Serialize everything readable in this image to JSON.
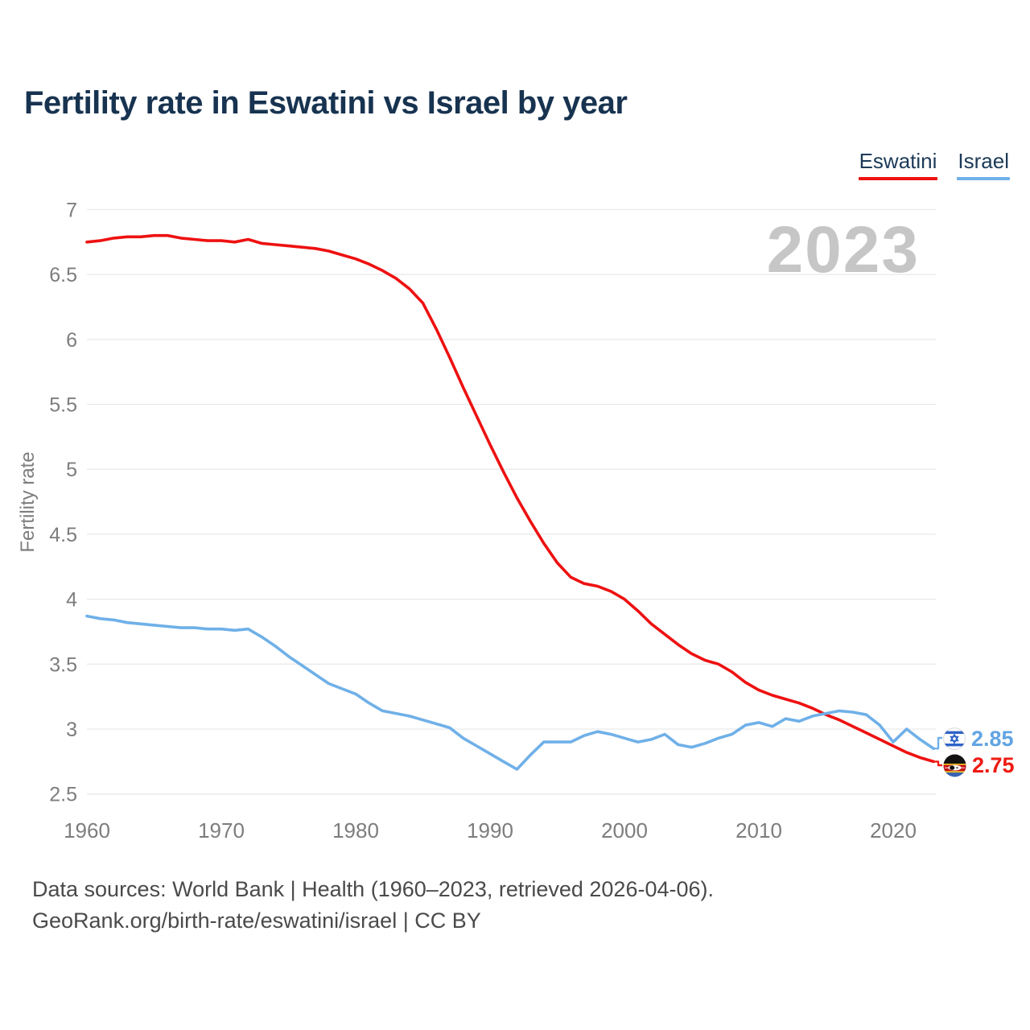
{
  "title": "Fertility rate in Eswatini vs Israel by year",
  "legend": [
    {
      "label": "Eswatini",
      "color": "#ee1111"
    },
    {
      "label": "Israel",
      "color": "#6fb0e8"
    }
  ],
  "watermark": "2023",
  "end_labels": [
    {
      "series": "Israel",
      "value": "2.85",
      "flag_icon": "israel-flag-icon",
      "color": "#62a4e2"
    },
    {
      "series": "Eswatini",
      "value": "2.75",
      "flag_icon": "eswatini-flag-icon",
      "color": "#ee1a12"
    }
  ],
  "footer": {
    "line1": "Data sources: World Bank | Health (1960–2023, retrieved 2026-04-06).",
    "line2": "GeoRank.org/birth-rate/eswatini/israel | CC BY"
  },
  "chart_data": {
    "type": "line",
    "title": "Fertility rate in Eswatini vs Israel by year",
    "xlabel": "",
    "ylabel": "Fertility rate",
    "xlim": [
      1960,
      2023
    ],
    "ylim": [
      2.5,
      7
    ],
    "grid": true,
    "legend_position": "top-right",
    "x_ticks": [
      1960,
      1970,
      1980,
      1990,
      2000,
      2010,
      2020
    ],
    "y_ticks": [
      7,
      6.5,
      6,
      5.5,
      5,
      4.5,
      4,
      3.5,
      3,
      2.5
    ],
    "x": [
      1960,
      1961,
      1962,
      1963,
      1964,
      1965,
      1966,
      1967,
      1968,
      1969,
      1970,
      1971,
      1972,
      1973,
      1974,
      1975,
      1976,
      1977,
      1978,
      1979,
      1980,
      1981,
      1982,
      1983,
      1984,
      1985,
      1986,
      1987,
      1988,
      1989,
      1990,
      1991,
      1992,
      1993,
      1994,
      1995,
      1996,
      1997,
      1998,
      1999,
      2000,
      2001,
      2002,
      2003,
      2004,
      2005,
      2006,
      2007,
      2008,
      2009,
      2010,
      2011,
      2012,
      2013,
      2014,
      2015,
      2016,
      2017,
      2018,
      2019,
      2020,
      2021,
      2022,
      2023
    ],
    "series": [
      {
        "name": "Eswatini",
        "color": "#ee1111",
        "values": [
          6.75,
          6.76,
          6.78,
          6.79,
          6.79,
          6.8,
          6.8,
          6.78,
          6.77,
          6.76,
          6.76,
          6.75,
          6.77,
          6.74,
          6.73,
          6.72,
          6.71,
          6.7,
          6.68,
          6.65,
          6.62,
          6.58,
          6.53,
          6.47,
          6.39,
          6.28,
          6.08,
          5.86,
          5.63,
          5.41,
          5.19,
          4.98,
          4.78,
          4.6,
          4.43,
          4.28,
          4.17,
          4.12,
          4.1,
          4.06,
          4.0,
          3.91,
          3.81,
          3.73,
          3.65,
          3.58,
          3.53,
          3.5,
          3.44,
          3.36,
          3.3,
          3.26,
          3.23,
          3.2,
          3.16,
          3.11,
          3.07,
          3.02,
          2.97,
          2.92,
          2.87,
          2.82,
          2.78,
          2.75
        ]
      },
      {
        "name": "Israel",
        "color": "#6fb0e8",
        "values": [
          3.87,
          3.85,
          3.84,
          3.82,
          3.81,
          3.8,
          3.79,
          3.78,
          3.78,
          3.77,
          3.77,
          3.76,
          3.77,
          3.71,
          3.64,
          3.56,
          3.49,
          3.42,
          3.35,
          3.31,
          3.27,
          3.2,
          3.14,
          3.12,
          3.1,
          3.07,
          3.04,
          3.01,
          2.93,
          2.87,
          2.81,
          2.75,
          2.69,
          2.8,
          2.9,
          2.9,
          2.9,
          2.95,
          2.98,
          2.96,
          2.93,
          2.9,
          2.92,
          2.96,
          2.88,
          2.86,
          2.89,
          2.93,
          2.96,
          3.03,
          3.05,
          3.02,
          3.08,
          3.06,
          3.1,
          3.12,
          3.14,
          3.13,
          3.11,
          3.03,
          2.9,
          3.0,
          2.92,
          2.85
        ]
      }
    ]
  }
}
